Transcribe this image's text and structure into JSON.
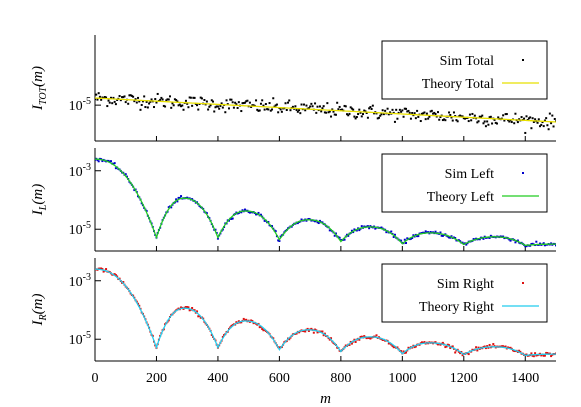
{
  "chart_data": [
    {
      "type": "scatter",
      "panel": "top",
      "ylabel": {
        "main": "I",
        "sub": "TOT",
        "suffix": "(m)"
      },
      "yscale": "log",
      "yticks": [
        {
          "value": 1e-05,
          "base": "10",
          "exp": "-5"
        }
      ],
      "ylim": [
        4e-06,
        6e-05
      ],
      "xlim": [
        0,
        1500
      ],
      "legend": {
        "position": "top-right"
      },
      "series": [
        {
          "name": "Sim Total",
          "kind": "points",
          "color": "#000000",
          "shape": "linear-decay",
          "start": 1.2e-05,
          "end": 6.5e-06,
          "noise": 0.16
        },
        {
          "name": "Theory Total",
          "kind": "line",
          "color": "#e8e000",
          "shape": "linear-decay",
          "start": 1.2e-05,
          "end": 6.5e-06
        }
      ]
    },
    {
      "type": "scatter",
      "panel": "middle",
      "ylabel": {
        "main": "I",
        "sub": "L",
        "suffix": "(m)"
      },
      "yscale": "log",
      "yticks": [
        {
          "value": 0.001,
          "base": "10",
          "exp": "-3"
        },
        {
          "value": 1e-05,
          "base": "10",
          "exp": "-5"
        }
      ],
      "ylim": [
        1.8e-06,
        0.006
      ],
      "xlim": [
        0,
        1500
      ],
      "legend": {
        "position": "top-right"
      },
      "minima_x": [
        200,
        400,
        600,
        800,
        1000,
        1200,
        1400
      ],
      "peaks": [
        {
          "x": 0,
          "y": 0.0025
        },
        {
          "x": 290,
          "y": 0.000115
        },
        {
          "x": 490,
          "y": 4.2e-05
        },
        {
          "x": 695,
          "y": 2.1e-05
        },
        {
          "x": 895,
          "y": 1.2e-05
        },
        {
          "x": 1090,
          "y": 7.5e-06
        },
        {
          "x": 1300,
          "y": 5.5e-06
        }
      ],
      "valleys": [
        {
          "x": 200,
          "y": 5.2e-06
        },
        {
          "x": 400,
          "y": 5.2e-06
        },
        {
          "x": 600,
          "y": 4.4e-06
        },
        {
          "x": 800,
          "y": 3.8e-06
        },
        {
          "x": 1000,
          "y": 3.2e-06
        },
        {
          "x": 1200,
          "y": 3e-06
        },
        {
          "x": 1400,
          "y": 2.8e-06
        }
      ],
      "end_value": 3.1e-06,
      "series": [
        {
          "name": "Sim Left",
          "kind": "points",
          "color": "#0000cc",
          "noise": 0.12
        },
        {
          "name": "Theory Left",
          "kind": "line",
          "color": "#22cc22"
        }
      ]
    },
    {
      "type": "scatter",
      "panel": "bottom",
      "ylabel": {
        "main": "I",
        "sub": "R",
        "suffix": "(m)"
      },
      "yscale": "log",
      "yticks": [
        {
          "value": 0.001,
          "base": "10",
          "exp": "-3"
        },
        {
          "value": 1e-05,
          "base": "10",
          "exp": "-5"
        }
      ],
      "ylim": [
        1.8e-06,
        0.006
      ],
      "xlim": [
        0,
        1500
      ],
      "legend": {
        "position": "top-right"
      },
      "minima_x": [
        200,
        400,
        600,
        800,
        1000,
        1200,
        1400
      ],
      "peaks": [
        {
          "x": 0,
          "y": 0.0025
        },
        {
          "x": 290,
          "y": 0.000115
        },
        {
          "x": 490,
          "y": 4.2e-05
        },
        {
          "x": 695,
          "y": 2.1e-05
        },
        {
          "x": 895,
          "y": 1.2e-05
        },
        {
          "x": 1090,
          "y": 7.5e-06
        },
        {
          "x": 1300,
          "y": 5.5e-06
        }
      ],
      "valleys": [
        {
          "x": 200,
          "y": 5.2e-06
        },
        {
          "x": 400,
          "y": 5.2e-06
        },
        {
          "x": 600,
          "y": 4.4e-06
        },
        {
          "x": 800,
          "y": 3.8e-06
        },
        {
          "x": 1000,
          "y": 3.2e-06
        },
        {
          "x": 1200,
          "y": 3e-06
        },
        {
          "x": 1400,
          "y": 2.8e-06
        }
      ],
      "end_value": 3.1e-06,
      "series": [
        {
          "name": "Sim Right",
          "kind": "points",
          "color": "#dd1111",
          "noise": 0.12
        },
        {
          "name": "Theory Right",
          "kind": "line",
          "color": "#22ccee"
        }
      ]
    }
  ],
  "xaxis": {
    "label": "m",
    "ticks": [
      0,
      200,
      400,
      600,
      800,
      1000,
      1200,
      1400
    ]
  }
}
